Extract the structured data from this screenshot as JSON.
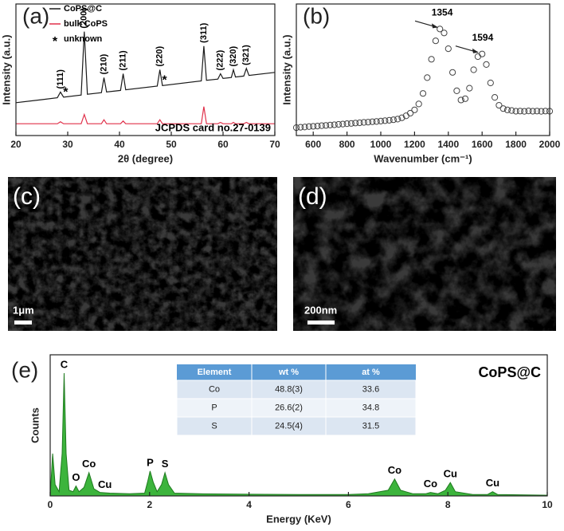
{
  "chart_data": [
    {
      "type": "line",
      "panel_label": "(a)",
      "y_label": "Intensity (a.u.)",
      "x_label": "2θ (degree)",
      "xlim": [
        20,
        70
      ],
      "xticks": [
        20,
        30,
        40,
        50,
        60,
        70
      ],
      "ylim": [
        0,
        100
      ],
      "x": [
        20,
        25,
        28,
        28.6,
        29.2,
        32.6,
        33.2,
        33.8,
        36.5,
        37,
        37.5,
        40.2,
        40.7,
        41.2,
        47.3,
        47.8,
        48.3,
        55.8,
        56.3,
        56.8,
        59,
        59.5,
        60,
        61.6,
        62,
        62.4,
        64,
        64.5,
        65,
        70
      ],
      "series": [
        {
          "name": "CoPS@C",
          "color": "#1a1a1a",
          "values": [
            25,
            27.3,
            28.7,
            33,
            29.2,
            30.8,
            79,
            31.4,
            32.6,
            44,
            33.1,
            34.3,
            47,
            34.8,
            37.6,
            50,
            38,
            41.5,
            68,
            42,
            42.9,
            47,
            43.4,
            44.1,
            50,
            44.5,
            45.2,
            51,
            45.7,
            48
          ]
        },
        {
          "name": "bulk CoPS",
          "color": "#e0304a",
          "values": [
            9,
            9,
            9,
            10.5,
            9,
            9,
            16,
            9,
            9,
            12,
            9,
            9,
            11,
            9,
            9,
            12,
            9,
            9,
            22,
            9,
            9,
            10,
            9,
            9,
            10,
            9,
            9,
            10,
            9,
            9
          ]
        }
      ],
      "markers": {
        "name": "unknown",
        "symbol": "*",
        "x": [
          29.6,
          48.7
        ],
        "values": [
          35,
          44
        ]
      },
      "peak_labels": [
        {
          "label": "(111)",
          "x": 28.6
        },
        {
          "label": "(200)",
          "x": 33.2
        },
        {
          "label": "(210)",
          "x": 37
        },
        {
          "label": "(211)",
          "x": 40.7
        },
        {
          "label": "(220)",
          "x": 47.8
        },
        {
          "label": "(311)",
          "x": 56.3
        },
        {
          "label": "(222)",
          "x": 59.5
        },
        {
          "label": "(320)",
          "x": 62
        },
        {
          "label": "(321)",
          "x": 64.5
        }
      ],
      "annotation": "JCPDS card no.27-0139"
    },
    {
      "type": "scatter",
      "panel_label": "(b)",
      "y_label": "Intensity (a.u.)",
      "x_label": "Wavenumber (cm⁻¹)",
      "xlim": [
        500,
        2000
      ],
      "xticks": [
        600,
        800,
        1000,
        1200,
        1400,
        1600,
        1800,
        2000
      ],
      "ylim": [
        0,
        100
      ],
      "color": "#444444",
      "x": [
        500,
        525,
        550,
        575,
        600,
        625,
        650,
        675,
        700,
        725,
        750,
        775,
        800,
        825,
        850,
        875,
        900,
        925,
        950,
        975,
        1000,
        1025,
        1050,
        1075,
        1100,
        1125,
        1150,
        1175,
        1200,
        1225,
        1250,
        1275,
        1300,
        1325,
        1350,
        1375,
        1400,
        1425,
        1450,
        1475,
        1500,
        1525,
        1550,
        1575,
        1600,
        1625,
        1650,
        1675,
        1700,
        1725,
        1750,
        1775,
        1800,
        1825,
        1850,
        1875,
        1900,
        1925,
        1950,
        1975,
        2000
      ],
      "values": [
        6,
        6.3,
        6.5,
        6.8,
        7,
        7.2,
        7.5,
        7.7,
        8,
        8.2,
        8.5,
        8.7,
        9,
        9.2,
        9.5,
        9.7,
        10,
        10.2,
        10.5,
        10.7,
        11,
        11.3,
        11.6,
        12,
        12.5,
        13.5,
        15,
        17,
        19.5,
        24,
        32,
        44,
        58,
        72,
        81,
        78,
        66,
        48,
        34,
        27,
        28,
        36,
        50,
        60,
        62,
        54,
        40,
        29,
        23,
        20.5,
        19.5,
        19,
        18.5,
        18.6,
        18.4,
        18.7,
        18.5,
        18.6,
        18.4,
        18.6,
        18.5
      ],
      "peak_annotations": [
        {
          "label": "1354",
          "x": 1354
        },
        {
          "label": "1594",
          "x": 1594
        }
      ]
    },
    {
      "type": "area",
      "panel_label": "(e)",
      "y_label": "Counts",
      "x_label": "Energy (KeV)",
      "xlim": [
        0,
        10
      ],
      "xticks": [
        0,
        2,
        4,
        6,
        8,
        10
      ],
      "ylim": [
        0,
        100
      ],
      "color": "#3cb43c",
      "x": [
        0,
        0.05,
        0.1,
        0.18,
        0.24,
        0.28,
        0.32,
        0.38,
        0.46,
        0.52,
        0.58,
        0.68,
        0.78,
        0.88,
        0.93,
        1.0,
        1.2,
        1.6,
        1.9,
        1.96,
        2.01,
        2.07,
        2.15,
        2.24,
        2.31,
        2.38,
        2.5,
        3,
        4,
        5,
        6,
        6.4,
        6.8,
        6.93,
        7.05,
        7.3,
        7.55,
        7.65,
        7.8,
        7.95,
        8.05,
        8.15,
        8.5,
        8.8,
        8.9,
        9.0,
        10
      ],
      "values": [
        0,
        30,
        8,
        3,
        30,
        87,
        30,
        4,
        3,
        7,
        3,
        6,
        16.5,
        5,
        4,
        2.5,
        2,
        1.5,
        2,
        10,
        17.6,
        10,
        3,
        8,
        16.5,
        8,
        2,
        1.5,
        1.2,
        1,
        1,
        1.5,
        4,
        12,
        4,
        1.5,
        1.5,
        2.5,
        1.5,
        4,
        9.5,
        3,
        1,
        1,
        3,
        1,
        0.5
      ],
      "peak_labels": [
        {
          "label": "C",
          "x": 0.28
        },
        {
          "label": "O",
          "x": 0.52
        },
        {
          "label": "Co",
          "x": 0.78
        },
        {
          "label": "Cu",
          "x": 1.1
        },
        {
          "label": "P",
          "x": 2.01
        },
        {
          "label": "S",
          "x": 2.31
        },
        {
          "label": "Co",
          "x": 6.93
        },
        {
          "label": "Co",
          "x": 7.65
        },
        {
          "label": "Cu",
          "x": 8.05
        },
        {
          "label": "Cu",
          "x": 8.9
        }
      ],
      "sample_label": "CoPS@C",
      "table": {
        "columns": [
          "Element",
          "wt %",
          "at %"
        ],
        "rows": [
          [
            "Co",
            "48.8(3)",
            "33.6"
          ],
          [
            "P",
            "26.6(2)",
            "34.8"
          ],
          [
            "S",
            "24.5(4)",
            "31.5"
          ]
        ]
      }
    }
  ],
  "images": [
    {
      "panel_label": "(c)",
      "scale_bar": "1μm"
    },
    {
      "panel_label": "(d)",
      "scale_bar": "200nm"
    }
  ]
}
